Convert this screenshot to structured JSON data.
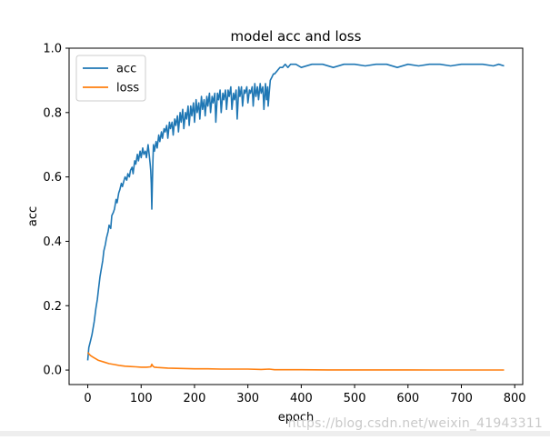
{
  "chart_data": {
    "type": "line",
    "title": "model acc and loss",
    "xlabel": "epoch",
    "ylabel": "acc",
    "xlim": [
      -35,
      815
    ],
    "ylim": [
      -0.045,
      1.0
    ],
    "xticks": [
      0,
      100,
      200,
      300,
      400,
      500,
      600,
      700,
      800
    ],
    "yticks": [
      0.0,
      0.2,
      0.4,
      0.6,
      0.8,
      1.0
    ],
    "grid": false,
    "legend": "top-left",
    "series": [
      {
        "name": "acc",
        "color": "#1f77b4",
        "x": [
          0,
          2,
          5,
          8,
          10,
          12,
          15,
          18,
          20,
          23,
          25,
          28,
          30,
          33,
          35,
          38,
          40,
          43,
          45,
          48,
          50,
          53,
          55,
          58,
          60,
          63,
          65,
          68,
          70,
          73,
          75,
          78,
          80,
          83,
          85,
          88,
          90,
          93,
          95,
          98,
          100,
          103,
          105,
          108,
          110,
          113,
          115,
          117,
          118,
          119,
          120,
          121,
          122,
          123,
          125,
          128,
          130,
          133,
          135,
          138,
          140,
          143,
          145,
          148,
          150,
          153,
          155,
          158,
          160,
          163,
          165,
          168,
          170,
          173,
          175,
          178,
          180,
          183,
          185,
          188,
          190,
          193,
          195,
          198,
          200,
          203,
          205,
          208,
          210,
          213,
          215,
          218,
          220,
          223,
          225,
          228,
          230,
          233,
          235,
          238,
          240,
          243,
          245,
          248,
          250,
          253,
          255,
          258,
          260,
          263,
          265,
          268,
          270,
          273,
          275,
          278,
          280,
          283,
          285,
          288,
          290,
          293,
          295,
          298,
          300,
          303,
          305,
          308,
          310,
          313,
          315,
          318,
          320,
          323,
          325,
          328,
          330,
          333,
          335,
          337,
          338,
          340,
          342,
          345,
          348,
          350,
          355,
          360,
          365,
          370,
          375,
          380,
          390,
          400,
          420,
          440,
          460,
          480,
          500,
          520,
          540,
          560,
          580,
          600,
          620,
          640,
          660,
          680,
          700,
          720,
          740,
          760,
          770,
          780
        ],
        "values": [
          0.03,
          0.07,
          0.09,
          0.11,
          0.13,
          0.15,
          0.19,
          0.22,
          0.25,
          0.29,
          0.31,
          0.34,
          0.37,
          0.39,
          0.41,
          0.43,
          0.45,
          0.44,
          0.48,
          0.49,
          0.5,
          0.53,
          0.52,
          0.55,
          0.56,
          0.58,
          0.57,
          0.59,
          0.6,
          0.59,
          0.61,
          0.6,
          0.62,
          0.63,
          0.61,
          0.65,
          0.64,
          0.67,
          0.65,
          0.68,
          0.66,
          0.69,
          0.67,
          0.68,
          0.66,
          0.7,
          0.67,
          0.64,
          0.62,
          0.58,
          0.5,
          0.58,
          0.65,
          0.7,
          0.68,
          0.71,
          0.69,
          0.73,
          0.71,
          0.74,
          0.72,
          0.75,
          0.74,
          0.76,
          0.72,
          0.77,
          0.75,
          0.77,
          0.73,
          0.78,
          0.76,
          0.79,
          0.74,
          0.8,
          0.77,
          0.81,
          0.75,
          0.8,
          0.78,
          0.82,
          0.76,
          0.82,
          0.79,
          0.83,
          0.77,
          0.84,
          0.8,
          0.83,
          0.78,
          0.85,
          0.81,
          0.84,
          0.79,
          0.85,
          0.82,
          0.86,
          0.8,
          0.85,
          0.83,
          0.86,
          0.77,
          0.86,
          0.84,
          0.87,
          0.8,
          0.86,
          0.84,
          0.87,
          0.81,
          0.87,
          0.85,
          0.88,
          0.81,
          0.86,
          0.84,
          0.87,
          0.78,
          0.88,
          0.85,
          0.88,
          0.82,
          0.87,
          0.86,
          0.88,
          0.83,
          0.87,
          0.86,
          0.88,
          0.82,
          0.89,
          0.85,
          0.88,
          0.84,
          0.89,
          0.86,
          0.88,
          0.81,
          0.89,
          0.84,
          0.88,
          0.82,
          0.86,
          0.9,
          0.91,
          0.92,
          0.92,
          0.93,
          0.94,
          0.94,
          0.95,
          0.94,
          0.95,
          0.95,
          0.94,
          0.95,
          0.95,
          0.94,
          0.95,
          0.95,
          0.945,
          0.95,
          0.95,
          0.94,
          0.95,
          0.945,
          0.95,
          0.95,
          0.945,
          0.95,
          0.95,
          0.95,
          0.945,
          0.95,
          0.945
        ]
      },
      {
        "name": "loss",
        "color": "#ff7f0e",
        "x": [
          0,
          5,
          10,
          15,
          20,
          30,
          40,
          50,
          60,
          70,
          80,
          90,
          100,
          110,
          118,
          120,
          122,
          125,
          130,
          140,
          150,
          175,
          200,
          225,
          250,
          275,
          300,
          325,
          340,
          350,
          375,
          400,
          450,
          500,
          550,
          600,
          650,
          700,
          750,
          780
        ],
        "values": [
          0.055,
          0.045,
          0.04,
          0.035,
          0.03,
          0.025,
          0.02,
          0.017,
          0.014,
          0.012,
          0.011,
          0.01,
          0.009,
          0.009,
          0.01,
          0.018,
          0.012,
          0.009,
          0.008,
          0.007,
          0.006,
          0.005,
          0.004,
          0.004,
          0.003,
          0.003,
          0.003,
          0.002,
          0.003,
          0.001,
          0.001,
          0.001,
          0.0005,
          0.0005,
          0.0004,
          0.0004,
          0.0003,
          0.0003,
          0.0003,
          0.0003
        ]
      }
    ]
  },
  "watermark": "https://blog.csdn.net/weixin_41943311"
}
